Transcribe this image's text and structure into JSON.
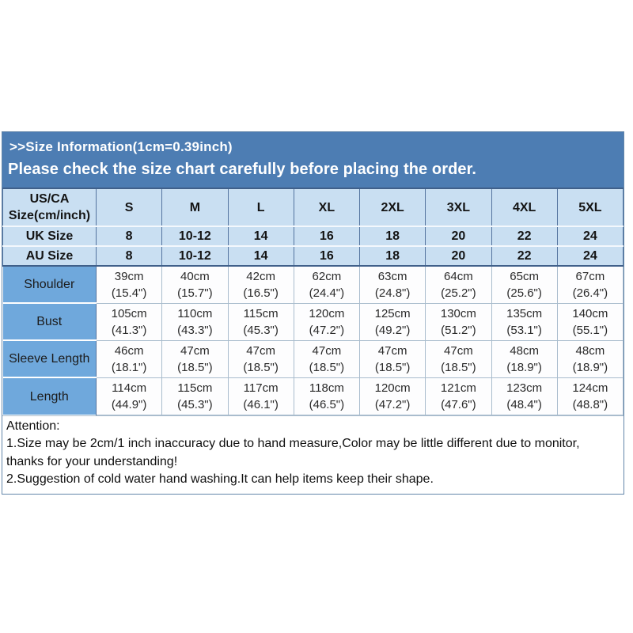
{
  "banner": {
    "line1": ">>Size Information(1cm=0.39inch)",
    "line2": "Please check the size chart carefully before placing the order."
  },
  "table": {
    "corner": {
      "line1": "US/CA",
      "line2": "Size(cm/inch)"
    },
    "columns": [
      "S",
      "M",
      "L",
      "XL",
      "2XL",
      "3XL",
      "4XL",
      "5XL"
    ],
    "uk": {
      "label": "UK Size",
      "values": [
        "8",
        "10-12",
        "14",
        "16",
        "18",
        "20",
        "22",
        "24"
      ]
    },
    "au": {
      "label": "AU Size",
      "values": [
        "8",
        "10-12",
        "14",
        "16",
        "18",
        "20",
        "22",
        "24"
      ]
    },
    "measurements": [
      {
        "label": "Shoulder",
        "cm": [
          "39cm",
          "40cm",
          "42cm",
          "62cm",
          "63cm",
          "64cm",
          "65cm",
          "67cm"
        ],
        "inch": [
          "(15.4\")",
          "(15.7\")",
          "(16.5\")",
          "(24.4\")",
          "(24.8\")",
          "(25.2\")",
          "(25.6\")",
          "(26.4\")"
        ]
      },
      {
        "label": "Bust",
        "cm": [
          "105cm",
          "110cm",
          "115cm",
          "120cm",
          "125cm",
          "130cm",
          "135cm",
          "140cm"
        ],
        "inch": [
          "(41.3\")",
          "(43.3\")",
          "(45.3\")",
          "(47.2\")",
          "(49.2\")",
          "(51.2\")",
          "(53.1\")",
          "(55.1\")"
        ]
      },
      {
        "label": "Sleeve Length",
        "cm": [
          "46cm",
          "47cm",
          "47cm",
          "47cm",
          "47cm",
          "47cm",
          "48cm",
          "48cm"
        ],
        "inch": [
          "(18.1\")",
          "(18.5\")",
          "(18.5\")",
          "(18.5\")",
          "(18.5\")",
          "(18.5\")",
          "(18.9\")",
          "(18.9\")"
        ]
      },
      {
        "label": "Length",
        "cm": [
          "114cm",
          "115cm",
          "117cm",
          "118cm",
          "120cm",
          "121cm",
          "123cm",
          "124cm"
        ],
        "inch": [
          "(44.9\")",
          "(45.3\")",
          "(46.1\")",
          "(46.5\")",
          "(47.2\")",
          "(47.6\")",
          "(48.4\")",
          "(48.8\")"
        ]
      }
    ]
  },
  "attention": {
    "title": "Attention:",
    "line1": "1.Size may be 2cm/1 inch inaccuracy due to hand measure,Color may be little different due to monitor, thanks for your understanding!",
    "line2": "2.Suggestion of cold water hand washing.It can help items keep their shape."
  },
  "colors": {
    "banner_bg": "#4d7db3",
    "header_row_bg": "#c9dff2",
    "row_label_bg": "#6fa8dc",
    "data_cell_bg": "#fdfdfe",
    "grid_dark": "#54749f",
    "grid_light": "#a9bccd",
    "banner_text": "#ffffff"
  }
}
